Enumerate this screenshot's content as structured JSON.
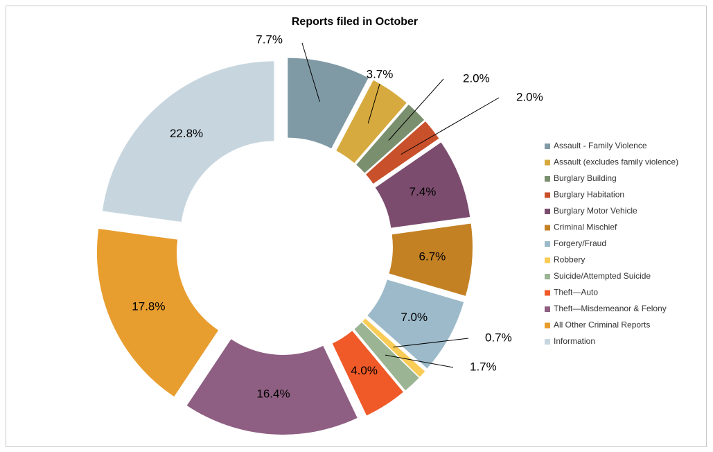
{
  "chart_data": {
    "type": "donut",
    "title": "Reports filed in October",
    "categories": [
      "Assault - Family Violence",
      "Assault (excludes family violence)",
      "Burglary Building",
      "Burglary Habitation",
      "Burglary Motor Vehicle",
      "Criminal Mischief",
      "Forgery/Fraud",
      "Robbery",
      "Suicide/Attempted Suicide",
      "Theft—Auto",
      "Theft—Misdemeanor & Felony",
      "All Other Criminal Reports",
      "Information"
    ],
    "values": [
      7.7,
      3.7,
      2.0,
      2.0,
      7.4,
      6.7,
      7.0,
      0.7,
      1.7,
      4.0,
      16.4,
      17.8,
      22.8
    ],
    "value_labels": [
      "7.7%",
      "3.7%",
      "2.0%",
      "2.0%",
      "7.4%",
      "6.7%",
      "7.0%",
      "0.7%",
      "1.7%",
      "4.0%",
      "16.4%",
      "17.8%",
      "22.8%"
    ],
    "colors": [
      "#7f9aa5",
      "#d6aa3e",
      "#7a8f6e",
      "#c8502a",
      "#7b4c6e",
      "#c38124",
      "#9cbac9",
      "#f8cc56",
      "#9bb594",
      "#ef5a28",
      "#8f5f83",
      "#e89d2f",
      "#c7d6de"
    ],
    "legend": "right"
  }
}
